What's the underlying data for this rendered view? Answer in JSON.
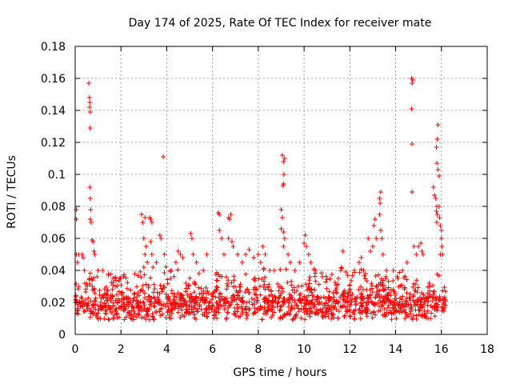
{
  "chart_data": {
    "type": "scatter",
    "title": "Day 174 of 2025, Rate Of TEC Index for receiver mate",
    "xlabel": "GPS time / hours",
    "ylabel": "ROTI / TECUs",
    "xlim": [
      0,
      18
    ],
    "ylim": [
      0,
      0.18
    ],
    "x_ticks": [
      0,
      2,
      4,
      6,
      8,
      10,
      12,
      14,
      16,
      18
    ],
    "x_tick_labels": [
      "0",
      "2",
      "4",
      "6",
      "8",
      "10",
      "12",
      "14",
      "16",
      "18"
    ],
    "y_ticks": [
      0,
      0.02,
      0.04,
      0.06,
      0.08,
      0.1,
      0.12,
      0.14,
      0.16,
      0.18
    ],
    "y_tick_labels": [
      "0",
      "0.02",
      "0.04",
      "0.06",
      "0.08",
      "0.1",
      "0.12",
      "0.14",
      "0.16",
      "0.18"
    ],
    "grid": true,
    "marker": "+",
    "marker_color": "#ff0000",
    "series": [
      {
        "name": "ROTI",
        "points": [
          [
            0.05,
            0.078
          ],
          [
            0.05,
            0.072
          ],
          [
            0.05,
            0.05
          ],
          [
            0.1,
            0.045
          ],
          [
            0.15,
            0.05
          ],
          [
            0.3,
            0.05
          ],
          [
            0.35,
            0.048
          ],
          [
            0.4,
            0.04
          ],
          [
            0.6,
            0.157
          ],
          [
            0.62,
            0.148
          ],
          [
            0.64,
            0.145
          ],
          [
            0.63,
            0.142
          ],
          [
            0.66,
            0.139
          ],
          [
            0.65,
            0.129
          ],
          [
            0.64,
            0.092
          ],
          [
            0.66,
            0.085
          ],
          [
            0.68,
            0.078
          ],
          [
            0.66,
            0.072
          ],
          [
            0.7,
            0.07
          ],
          [
            0.74,
            0.059
          ],
          [
            0.78,
            0.058
          ],
          [
            0.82,
            0.052
          ],
          [
            0.86,
            0.05
          ],
          [
            1.0,
            0.04
          ],
          [
            1.2,
            0.04
          ],
          [
            1.45,
            0.037
          ],
          [
            1.65,
            0.035
          ],
          [
            1.75,
            0.03
          ],
          [
            2.9,
            0.075
          ],
          [
            2.95,
            0.07
          ],
          [
            3.05,
            0.073
          ],
          [
            3.0,
            0.06
          ],
          [
            3.1,
            0.055
          ],
          [
            3.05,
            0.05
          ],
          [
            3.15,
            0.045
          ],
          [
            3.0,
            0.042
          ],
          [
            3.25,
            0.073
          ],
          [
            3.3,
            0.072
          ],
          [
            3.35,
            0.07
          ],
          [
            3.3,
            0.058
          ],
          [
            3.35,
            0.05
          ],
          [
            3.4,
            0.042
          ],
          [
            3.55,
            0.045
          ],
          [
            3.7,
            0.062
          ],
          [
            3.75,
            0.06
          ],
          [
            3.85,
            0.111
          ],
          [
            3.9,
            0.05
          ],
          [
            4.2,
            0.04
          ],
          [
            4.4,
            0.045
          ],
          [
            4.5,
            0.052
          ],
          [
            4.6,
            0.05
          ],
          [
            4.7,
            0.048
          ],
          [
            5.05,
            0.063
          ],
          [
            5.1,
            0.06
          ],
          [
            5.15,
            0.05
          ],
          [
            5.3,
            0.045
          ],
          [
            5.6,
            0.04
          ],
          [
            5.75,
            0.05
          ],
          [
            6.25,
            0.076
          ],
          [
            6.3,
            0.075
          ],
          [
            6.3,
            0.065
          ],
          [
            6.4,
            0.06
          ],
          [
            6.5,
            0.05
          ],
          [
            6.7,
            0.073
          ],
          [
            6.75,
            0.072
          ],
          [
            6.8,
            0.075
          ],
          [
            6.7,
            0.06
          ],
          [
            6.85,
            0.058
          ],
          [
            6.9,
            0.055
          ],
          [
            7.1,
            0.05
          ],
          [
            7.3,
            0.045
          ],
          [
            7.45,
            0.05
          ],
          [
            7.6,
            0.053
          ],
          [
            7.8,
            0.048
          ],
          [
            8.0,
            0.05
          ],
          [
            8.1,
            0.045
          ],
          [
            8.2,
            0.055
          ],
          [
            8.3,
            0.05
          ],
          [
            8.5,
            0.04
          ],
          [
            8.7,
            0.04
          ],
          [
            9.05,
            0.112
          ],
          [
            9.1,
            0.108
          ],
          [
            9.15,
            0.11
          ],
          [
            9.12,
            0.1
          ],
          [
            9.1,
            0.094
          ],
          [
            9.08,
            0.093
          ],
          [
            9.0,
            0.078
          ],
          [
            9.05,
            0.073
          ],
          [
            9.0,
            0.066
          ],
          [
            9.1,
            0.064
          ],
          [
            9.15,
            0.06
          ],
          [
            9.1,
            0.055
          ],
          [
            9.3,
            0.05
          ],
          [
            9.4,
            0.045
          ],
          [
            9.6,
            0.04
          ],
          [
            9.8,
            0.045
          ],
          [
            10.0,
            0.057
          ],
          [
            10.05,
            0.062
          ],
          [
            10.1,
            0.055
          ],
          [
            10.2,
            0.05
          ],
          [
            10.3,
            0.045
          ],
          [
            10.5,
            0.04
          ],
          [
            10.8,
            0.036
          ],
          [
            11.5,
            0.035
          ],
          [
            11.6,
            0.04
          ],
          [
            11.7,
            0.052
          ],
          [
            11.9,
            0.037
          ],
          [
            12.2,
            0.04
          ],
          [
            12.4,
            0.045
          ],
          [
            12.5,
            0.048
          ],
          [
            12.6,
            0.04
          ],
          [
            12.8,
            0.06
          ],
          [
            12.9,
            0.052
          ],
          [
            13.0,
            0.055
          ],
          [
            13.05,
            0.068
          ],
          [
            13.1,
            0.072
          ],
          [
            13.15,
            0.06
          ],
          [
            13.3,
            0.085
          ],
          [
            13.35,
            0.089
          ],
          [
            13.32,
            0.082
          ],
          [
            13.3,
            0.075
          ],
          [
            13.35,
            0.065
          ],
          [
            13.4,
            0.06
          ],
          [
            13.45,
            0.05
          ],
          [
            13.6,
            0.04
          ],
          [
            13.9,
            0.04
          ],
          [
            14.1,
            0.035
          ],
          [
            14.3,
            0.04
          ],
          [
            14.5,
            0.045
          ],
          [
            14.7,
            0.16
          ],
          [
            14.75,
            0.159
          ],
          [
            14.72,
            0.157
          ],
          [
            14.7,
            0.141
          ],
          [
            14.72,
            0.119
          ],
          [
            14.72,
            0.089
          ],
          [
            14.8,
            0.055
          ],
          [
            14.9,
            0.05
          ],
          [
            15.0,
            0.055
          ],
          [
            15.1,
            0.057
          ],
          [
            15.15,
            0.052
          ],
          [
            15.2,
            0.05
          ],
          [
            15.65,
            0.092
          ],
          [
            15.7,
            0.087
          ],
          [
            15.75,
            0.085
          ],
          [
            15.8,
            0.08
          ],
          [
            15.78,
            0.077
          ],
          [
            15.82,
            0.075
          ],
          [
            15.8,
            0.07
          ],
          [
            15.85,
            0.131
          ],
          [
            15.82,
            0.122
          ],
          [
            15.78,
            0.117
          ],
          [
            15.8,
            0.107
          ],
          [
            15.85,
            0.103
          ],
          [
            15.9,
            0.099
          ],
          [
            15.9,
            0.08
          ],
          [
            15.92,
            0.073
          ],
          [
            15.95,
            0.068
          ],
          [
            16.0,
            0.065
          ],
          [
            16.0,
            0.06
          ],
          [
            16.02,
            0.055
          ],
          [
            15.95,
            0.05
          ],
          [
            16.05,
            0.05
          ]
        ]
      }
    ],
    "background_band": {
      "x_start": 0.0,
      "x_end": 16.2,
      "y_center": 0.016,
      "y_spread": 0.01,
      "seed": 174
    }
  }
}
